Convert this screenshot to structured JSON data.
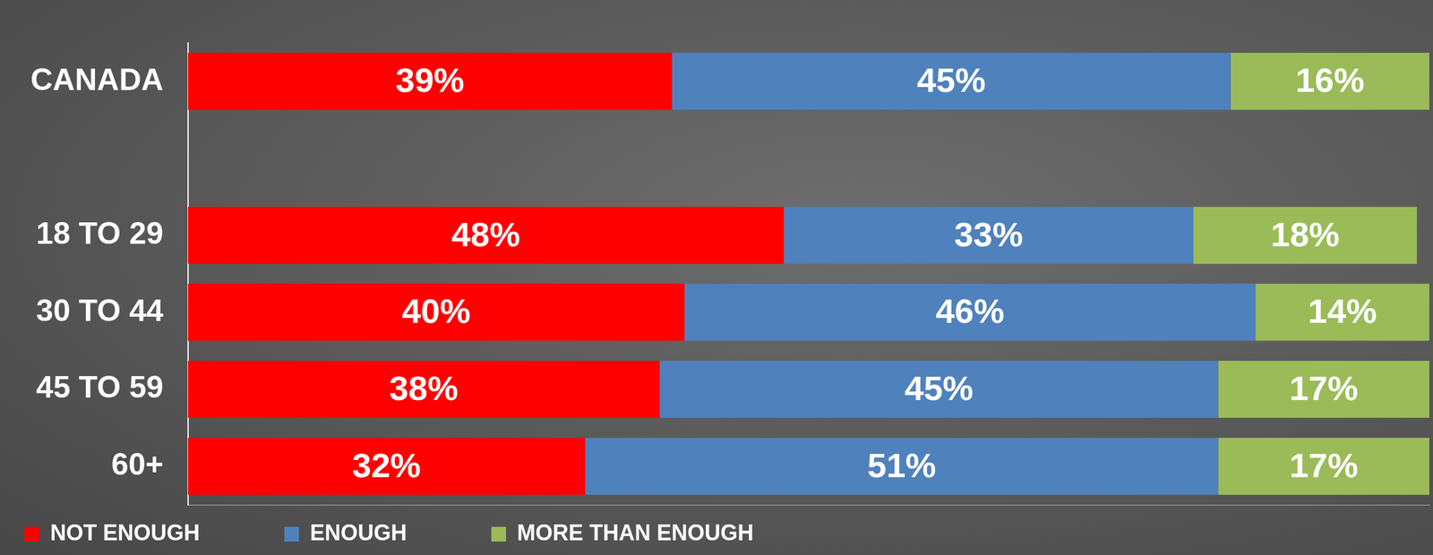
{
  "chart_data": {
    "type": "bar",
    "orientation": "horizontal",
    "stacked": true,
    "data_labels": true,
    "tick_labels": "y",
    "grid": false,
    "legend": "bottom",
    "categories": [
      "CANADA",
      null,
      "18 TO 29",
      "30 TO 44",
      "45 TO 59",
      "60+"
    ],
    "xlim": [
      0,
      100
    ],
    "series": [
      {
        "name": "NOT ENOUGH",
        "color": "#ff0000",
        "values": [
          39,
          null,
          48,
          40,
          38,
          32
        ],
        "value_labels": [
          "39%",
          null,
          "48%",
          "40%",
          "38%",
          "32%"
        ]
      },
      {
        "name": "ENOUGH",
        "color": "#4f81bd",
        "values": [
          45,
          null,
          33,
          46,
          45,
          51
        ],
        "value_labels": [
          "45%",
          null,
          "33%",
          "46%",
          "45%",
          "51%"
        ]
      },
      {
        "name": "MORE THAN ENOUGH",
        "color": "#9bbb59",
        "values": [
          16,
          null,
          18,
          14,
          17,
          17
        ],
        "value_labels": [
          "16%",
          null,
          "18%",
          "14%",
          "17%",
          "17%"
        ]
      }
    ]
  }
}
